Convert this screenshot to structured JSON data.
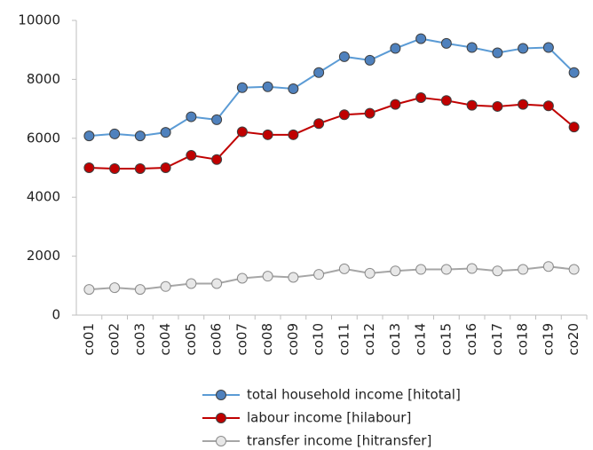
{
  "chart_data": {
    "type": "line",
    "categories": [
      "co01",
      "co02",
      "co03",
      "co04",
      "co05",
      "co06",
      "co07",
      "co08",
      "co09",
      "co10",
      "co11",
      "co12",
      "co13",
      "co14",
      "co15",
      "co16",
      "co17",
      "co18",
      "co19",
      "co20"
    ],
    "series": [
      {
        "name": "total household income [hitotal]",
        "color": "#5b9bd5",
        "marker_color": "#4f81bd",
        "values": [
          6080,
          6150,
          6080,
          6200,
          6730,
          6630,
          7720,
          7750,
          7680,
          8230,
          8770,
          8650,
          9050,
          9380,
          9220,
          9080,
          8900,
          9050,
          9080,
          8230
        ]
      },
      {
        "name": "labour income [hilabour]",
        "color": "#c00000",
        "marker_color": "#c00000",
        "values": [
          5000,
          4970,
          4970,
          5000,
          5420,
          5280,
          6220,
          6120,
          6120,
          6500,
          6800,
          6850,
          7150,
          7380,
          7280,
          7120,
          7080,
          7150,
          7100,
          6380
        ]
      },
      {
        "name": "transfer income [hitransfer]",
        "color": "#a6a6a6",
        "marker_color": "#e7e7e7",
        "values": [
          870,
          930,
          870,
          970,
          1070,
          1070,
          1250,
          1320,
          1280,
          1380,
          1570,
          1420,
          1500,
          1550,
          1550,
          1580,
          1500,
          1550,
          1650,
          1550
        ]
      }
    ],
    "ylim": [
      0,
      10000
    ],
    "yticks": [
      0,
      2000,
      4000,
      6000,
      8000,
      10000
    ],
    "grid": false,
    "legend": "bottom"
  }
}
